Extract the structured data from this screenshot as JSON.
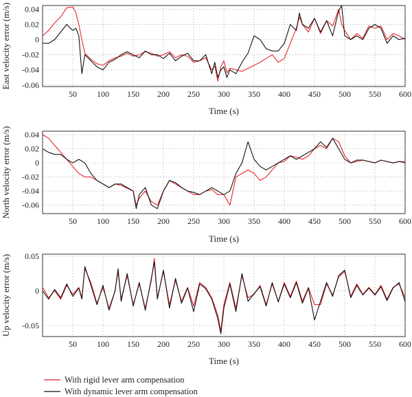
{
  "chart_data": [
    {
      "type": "line",
      "xlabel": "Time (s)",
      "ylabel": "East velocity error (m/s)",
      "xlim": [
        0,
        600
      ],
      "ylim": [
        -0.062,
        0.045
      ],
      "xticks": [
        50,
        100,
        150,
        200,
        250,
        300,
        350,
        400,
        450,
        500,
        550,
        600
      ],
      "yticks": [
        -0.06,
        -0.04,
        -0.02,
        0,
        0.02,
        0.04
      ],
      "ytick_labels": [
        "-0.06",
        "-0.04",
        "-0.02",
        "0",
        "0.02",
        "0.04"
      ],
      "grid": true,
      "series": [
        {
          "name": "With rigid lever arm compensation",
          "color": "#e8242a",
          "x": [
            0,
            10,
            20,
            30,
            40,
            50,
            55,
            60,
            65,
            70,
            80,
            90,
            100,
            110,
            120,
            130,
            140,
            150,
            160,
            170,
            180,
            190,
            200,
            210,
            220,
            230,
            240,
            250,
            260,
            270,
            280,
            285,
            290,
            295,
            300,
            305,
            310,
            320,
            330,
            340,
            350,
            360,
            370,
            380,
            390,
            400,
            410,
            420,
            425,
            430,
            440,
            450,
            460,
            470,
            480,
            490,
            495,
            500,
            510,
            520,
            530,
            540,
            550,
            560,
            570,
            580,
            590,
            600
          ],
          "y": [
            0.005,
            0.012,
            0.022,
            0.03,
            0.042,
            0.043,
            0.036,
            0.02,
            0.0,
            -0.018,
            -0.026,
            -0.032,
            -0.034,
            -0.028,
            -0.024,
            -0.022,
            -0.018,
            -0.022,
            -0.02,
            -0.016,
            -0.018,
            -0.022,
            -0.02,
            -0.016,
            -0.024,
            -0.02,
            -0.022,
            -0.03,
            -0.028,
            -0.024,
            -0.04,
            -0.035,
            -0.055,
            -0.036,
            -0.028,
            -0.044,
            -0.038,
            -0.04,
            -0.042,
            -0.038,
            -0.034,
            -0.03,
            -0.025,
            -0.02,
            -0.03,
            -0.025,
            -0.005,
            0.015,
            0.03,
            0.02,
            0.01,
            0.028,
            0.008,
            0.025,
            0.018,
            0.04,
            0.02,
            0.012,
            0.0,
            0.008,
            0.002,
            0.018,
            0.015,
            0.018,
            0.0,
            0.008,
            0.005,
            0.0
          ]
        },
        {
          "name": "With dynamic lever arm compensation",
          "color": "#111111",
          "x": [
            0,
            10,
            20,
            30,
            40,
            50,
            55,
            60,
            65,
            70,
            80,
            90,
            100,
            110,
            120,
            130,
            140,
            150,
            160,
            170,
            180,
            190,
            200,
            210,
            220,
            230,
            240,
            250,
            260,
            270,
            280,
            285,
            290,
            295,
            300,
            305,
            310,
            320,
            330,
            340,
            350,
            360,
            370,
            380,
            390,
            400,
            410,
            420,
            425,
            430,
            440,
            450,
            460,
            470,
            480,
            490,
            495,
            500,
            510,
            520,
            530,
            540,
            550,
            560,
            570,
            580,
            590,
            600
          ],
          "y": [
            -0.005,
            -0.005,
            0.0,
            0.01,
            0.02,
            0.012,
            0.015,
            0.005,
            -0.045,
            -0.02,
            -0.028,
            -0.036,
            -0.04,
            -0.03,
            -0.026,
            -0.02,
            -0.016,
            -0.02,
            -0.024,
            -0.015,
            -0.02,
            -0.02,
            -0.025,
            -0.018,
            -0.028,
            -0.022,
            -0.018,
            -0.028,
            -0.028,
            -0.02,
            -0.045,
            -0.03,
            -0.05,
            -0.04,
            -0.036,
            -0.05,
            -0.04,
            -0.045,
            -0.03,
            -0.018,
            0.005,
            0.0,
            -0.012,
            -0.015,
            -0.015,
            -0.005,
            0.02,
            0.012,
            0.035,
            0.02,
            0.015,
            0.028,
            0.01,
            0.025,
            0.005,
            0.038,
            0.045,
            0.005,
            0.0,
            0.005,
            0.0,
            0.015,
            0.02,
            0.015,
            -0.005,
            0.005,
            0.0,
            0.002
          ]
        }
      ]
    },
    {
      "type": "line",
      "xlabel": "Time (s)",
      "ylabel": "North velocity error (m/s)",
      "xlim": [
        0,
        600
      ],
      "ylim": [
        -0.072,
        0.045
      ],
      "xticks": [
        50,
        100,
        150,
        200,
        250,
        300,
        350,
        400,
        450,
        500,
        550,
        600
      ],
      "yticks": [
        -0.06,
        -0.04,
        -0.02,
        0,
        0.02,
        0.04
      ],
      "ytick_labels": [
        "-0.06",
        "-0.04",
        "-0.02",
        "0",
        "0.02",
        "0.04"
      ],
      "grid": true,
      "series": [
        {
          "name": "With rigid lever arm compensation",
          "color": "#e8242a",
          "x": [
            0,
            10,
            20,
            30,
            40,
            50,
            60,
            70,
            80,
            90,
            100,
            110,
            120,
            130,
            140,
            150,
            155,
            160,
            170,
            180,
            190,
            200,
            210,
            220,
            230,
            240,
            250,
            260,
            270,
            280,
            290,
            300,
            310,
            320,
            330,
            340,
            350,
            360,
            370,
            380,
            390,
            400,
            410,
            420,
            430,
            440,
            450,
            460,
            470,
            480,
            490,
            500,
            510,
            520,
            530,
            540,
            550,
            560,
            570,
            580,
            590,
            600
          ],
          "y": [
            0.04,
            0.035,
            0.025,
            0.015,
            0.005,
            -0.005,
            -0.015,
            -0.02,
            -0.02,
            -0.025,
            -0.03,
            -0.035,
            -0.03,
            -0.032,
            -0.036,
            -0.04,
            -0.06,
            -0.05,
            -0.04,
            -0.055,
            -0.06,
            -0.04,
            -0.025,
            -0.03,
            -0.035,
            -0.04,
            -0.045,
            -0.045,
            -0.04,
            -0.038,
            -0.045,
            -0.045,
            -0.06,
            -0.02,
            -0.015,
            -0.01,
            -0.015,
            -0.025,
            -0.02,
            -0.01,
            0.0,
            0.002,
            0.01,
            0.008,
            0.005,
            0.01,
            0.02,
            0.025,
            0.02,
            0.035,
            0.03,
            0.01,
            0.0,
            0.002,
            0.004,
            0.002,
            0.0,
            0.004,
            0.002,
            0.0,
            0.002,
            0.0
          ]
        },
        {
          "name": "With dynamic lever arm compensation",
          "color": "#111111",
          "x": [
            0,
            10,
            20,
            30,
            40,
            50,
            60,
            70,
            80,
            90,
            100,
            110,
            120,
            130,
            140,
            150,
            155,
            160,
            170,
            180,
            190,
            200,
            210,
            220,
            230,
            240,
            250,
            260,
            270,
            280,
            290,
            300,
            310,
            320,
            330,
            340,
            350,
            360,
            370,
            380,
            390,
            400,
            410,
            420,
            430,
            440,
            450,
            460,
            470,
            480,
            490,
            500,
            510,
            520,
            530,
            540,
            550,
            560,
            570,
            580,
            590,
            600
          ],
          "y": [
            0.02,
            0.015,
            0.012,
            0.012,
            0.005,
            0.0,
            0.005,
            0.0,
            -0.015,
            -0.025,
            -0.03,
            -0.035,
            -0.03,
            -0.03,
            -0.035,
            -0.04,
            -0.065,
            -0.045,
            -0.035,
            -0.06,
            -0.065,
            -0.04,
            -0.025,
            -0.028,
            -0.035,
            -0.04,
            -0.042,
            -0.045,
            -0.04,
            -0.035,
            -0.04,
            -0.045,
            -0.04,
            -0.015,
            0.0,
            0.03,
            0.005,
            -0.005,
            -0.01,
            -0.005,
            0.0,
            0.005,
            0.01,
            0.005,
            0.01,
            0.015,
            0.02,
            0.03,
            0.022,
            0.035,
            0.02,
            0.005,
            0.0,
            0.004,
            0.004,
            0.002,
            0.0,
            0.004,
            0.002,
            0.0,
            0.002,
            0.001
          ]
        }
      ]
    },
    {
      "type": "line",
      "xlabel": "Time (s)",
      "ylabel": "Up velocity error (m/s)",
      "xlim": [
        0,
        600
      ],
      "ylim": [
        -0.066,
        0.053
      ],
      "xticks": [
        50,
        100,
        150,
        200,
        250,
        300,
        350,
        400,
        450,
        500,
        550,
        600
      ],
      "yticks": [
        -0.05,
        0,
        0.05
      ],
      "ytick_labels": [
        "-0.05",
        "0",
        "0.05"
      ],
      "grid": true,
      "series": [
        {
          "name": "With rigid lever arm compensation",
          "color": "#e8242a",
          "x": [
            0,
            10,
            20,
            30,
            40,
            50,
            60,
            65,
            70,
            80,
            90,
            100,
            110,
            120,
            125,
            130,
            140,
            150,
            160,
            170,
            180,
            185,
            190,
            200,
            210,
            220,
            230,
            240,
            250,
            260,
            270,
            280,
            290,
            295,
            300,
            310,
            320,
            330,
            340,
            350,
            360,
            370,
            380,
            390,
            400,
            410,
            420,
            430,
            440,
            450,
            460,
            470,
            480,
            490,
            500,
            510,
            520,
            530,
            540,
            550,
            560,
            570,
            580,
            590,
            600
          ],
          "y": [
            0.005,
            -0.01,
            0.0,
            -0.012,
            0.008,
            -0.005,
            0.005,
            -0.01,
            0.032,
            0.012,
            -0.018,
            0.005,
            -0.025,
            0.0,
            0.028,
            -0.012,
            0.022,
            -0.02,
            0.01,
            -0.025,
            0.015,
            0.047,
            -0.01,
            0.028,
            -0.02,
            0.015,
            -0.015,
            0.005,
            -0.022,
            0.012,
            0.005,
            -0.01,
            -0.035,
            -0.058,
            -0.02,
            0.012,
            -0.025,
            0.022,
            -0.01,
            -0.005,
            0.008,
            -0.02,
            0.01,
            -0.015,
            0.012,
            -0.008,
            0.014,
            -0.015,
            0.005,
            -0.02,
            -0.02,
            0.01,
            -0.006,
            0.02,
            0.028,
            -0.008,
            0.01,
            -0.005,
            0.005,
            -0.005,
            0.008,
            -0.012,
            0.005,
            0.01,
            -0.01
          ]
        },
        {
          "name": "With dynamic lever arm compensation",
          "color": "#111111",
          "x": [
            0,
            10,
            20,
            30,
            40,
            50,
            60,
            65,
            70,
            80,
            90,
            100,
            110,
            120,
            125,
            130,
            140,
            150,
            160,
            170,
            180,
            185,
            190,
            200,
            210,
            220,
            230,
            240,
            250,
            260,
            270,
            280,
            290,
            295,
            300,
            310,
            320,
            330,
            340,
            350,
            360,
            370,
            380,
            390,
            400,
            410,
            420,
            430,
            440,
            450,
            460,
            470,
            480,
            490,
            500,
            510,
            520,
            530,
            540,
            550,
            560,
            570,
            580,
            590,
            600
          ],
          "y": [
            0.0,
            -0.012,
            0.002,
            -0.01,
            0.01,
            -0.008,
            0.004,
            -0.012,
            0.035,
            0.008,
            -0.02,
            0.008,
            -0.028,
            0.0,
            0.032,
            -0.015,
            0.025,
            -0.022,
            0.012,
            -0.028,
            0.018,
            0.042,
            -0.012,
            0.03,
            -0.025,
            0.018,
            -0.018,
            0.004,
            -0.03,
            0.01,
            0.003,
            -0.012,
            -0.04,
            -0.062,
            -0.025,
            0.01,
            -0.03,
            0.025,
            -0.015,
            -0.004,
            0.006,
            -0.022,
            0.012,
            -0.016,
            0.01,
            -0.01,
            0.012,
            -0.018,
            0.004,
            -0.042,
            -0.015,
            0.012,
            -0.008,
            0.022,
            0.03,
            -0.01,
            0.008,
            -0.006,
            0.004,
            -0.006,
            0.006,
            -0.014,
            0.004,
            0.012,
            -0.016
          ]
        }
      ]
    }
  ],
  "legend": [
    {
      "label": "With rigid lever arm compensation",
      "color": "#e8242a"
    },
    {
      "label": "With dynamic lever arm compensation",
      "color": "#111111"
    }
  ]
}
